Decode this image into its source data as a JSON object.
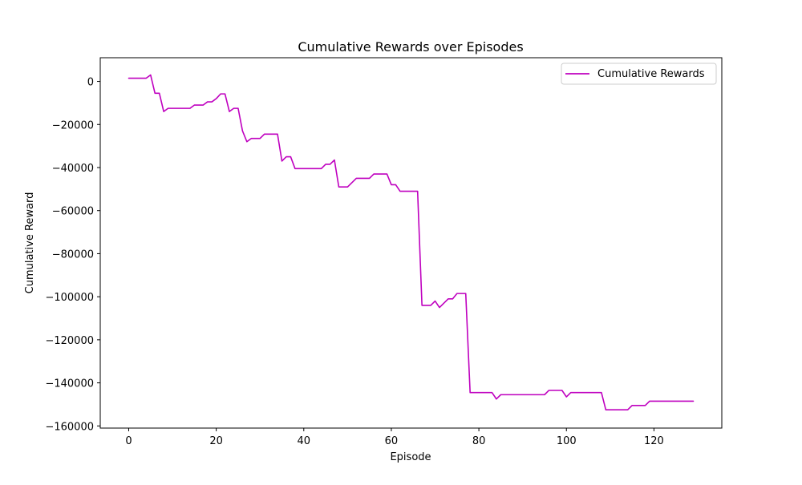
{
  "chart_data": {
    "type": "line",
    "title": "Cumulative Rewards over Episodes",
    "xlabel": "Episode",
    "ylabel": "Cumulative Reward",
    "xlim": [
      -6.5,
      135.5
    ],
    "ylim": [
      -161000,
      11000
    ],
    "xticks": [
      0,
      20,
      40,
      60,
      80,
      100,
      120
    ],
    "xtick_labels": [
      "0",
      "20",
      "40",
      "60",
      "80",
      "100",
      "120"
    ],
    "yticks": [
      0,
      -20000,
      -40000,
      -60000,
      -80000,
      -100000,
      -120000,
      -140000,
      -160000
    ],
    "ytick_labels": [
      "0",
      "−20000",
      "−40000",
      "−60000",
      "−80000",
      "−100000",
      "−120000",
      "−140000",
      "−160000"
    ],
    "grid": false,
    "legend_position": "top-right",
    "series": [
      {
        "name": "Cumulative Rewards",
        "color": "#bf00bf",
        "x": [
          0,
          1,
          2,
          3,
          4,
          5,
          6,
          7,
          8,
          9,
          10,
          11,
          12,
          13,
          14,
          15,
          16,
          17,
          18,
          19,
          20,
          21,
          22,
          23,
          24,
          25,
          26,
          27,
          28,
          29,
          30,
          31,
          32,
          33,
          34,
          35,
          36,
          37,
          38,
          39,
          40,
          41,
          42,
          43,
          44,
          45,
          46,
          47,
          48,
          49,
          50,
          51,
          52,
          53,
          54,
          55,
          56,
          57,
          58,
          59,
          60,
          61,
          62,
          63,
          64,
          65,
          66,
          67,
          68,
          69,
          70,
          71,
          72,
          73,
          74,
          75,
          76,
          77,
          78,
          79,
          80,
          81,
          82,
          83,
          84,
          85,
          86,
          87,
          88,
          89,
          90,
          91,
          92,
          93,
          94,
          95,
          96,
          97,
          98,
          99,
          100,
          101,
          102,
          103,
          104,
          105,
          106,
          107,
          108,
          109,
          110,
          111,
          112,
          113,
          114,
          115,
          116,
          117,
          118,
          119,
          120,
          121,
          122,
          123,
          124,
          125,
          126,
          127,
          128,
          129
        ],
        "values": [
          1500,
          1500,
          1500,
          1500,
          1500,
          3000,
          -5500,
          -5500,
          -14000,
          -12500,
          -12500,
          -12500,
          -12500,
          -12500,
          -12500,
          -11000,
          -11000,
          -11000,
          -9500,
          -9500,
          -8000,
          -5800,
          -5800,
          -14000,
          -12500,
          -12500,
          -23000,
          -28000,
          -26500,
          -26500,
          -26500,
          -24500,
          -24500,
          -24500,
          -24500,
          -37000,
          -35000,
          -35000,
          -40500,
          -40500,
          -40500,
          -40500,
          -40500,
          -40500,
          -40500,
          -38500,
          -38500,
          -36500,
          -49000,
          -49000,
          -49000,
          -47000,
          -45000,
          -45000,
          -45000,
          -45000,
          -43000,
          -43000,
          -43000,
          -43000,
          -48000,
          -48000,
          -51000,
          -51000,
          -51000,
          -51000,
          -51000,
          -104000,
          -104000,
          -104000,
          -102000,
          -105000,
          -103000,
          -101000,
          -101000,
          -98500,
          -98500,
          -98500,
          -144500,
          -144500,
          -144500,
          -144500,
          -144500,
          -144500,
          -147500,
          -145500,
          -145500,
          -145500,
          -145500,
          -145500,
          -145500,
          -145500,
          -145500,
          -145500,
          -145500,
          -145500,
          -143500,
          -143500,
          -143500,
          -143500,
          -146500,
          -144500,
          -144500,
          -144500,
          -144500,
          -144500,
          -144500,
          -144500,
          -144500,
          -152500,
          -152500,
          -152500,
          -152500,
          -152500,
          -152500,
          -150500,
          -150500,
          -150500,
          -150500,
          -148500,
          -148500,
          -148500,
          -148500,
          -148500,
          -148500,
          -148500,
          -148500,
          -148500,
          -148500,
          -148500
        ]
      }
    ]
  }
}
